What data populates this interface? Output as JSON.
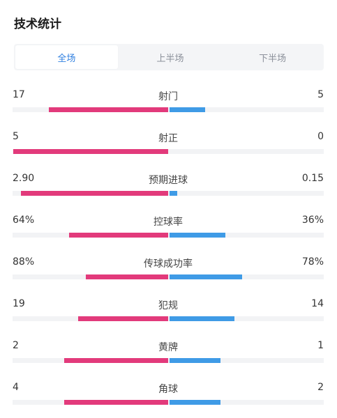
{
  "title": "技术统计",
  "tabs": [
    {
      "label": "全场",
      "active": true
    },
    {
      "label": "上半场",
      "active": false
    },
    {
      "label": "下半场",
      "active": false
    }
  ],
  "colors": {
    "home": "#e23a7b",
    "away": "#3f9be6",
    "active_tab": "#2f7fe0"
  },
  "stats": [
    {
      "label": "射门",
      "home": "17",
      "away": "5",
      "home_frac": 0.77,
      "away_frac": 0.23
    },
    {
      "label": "射正",
      "home": "5",
      "away": "0",
      "home_frac": 1.0,
      "away_frac": 0.0
    },
    {
      "label": "预期进球",
      "home": "2.90",
      "away": "0.15",
      "home_frac": 0.95,
      "away_frac": 0.05
    },
    {
      "label": "控球率",
      "home": "64%",
      "away": "36%",
      "home_frac": 0.64,
      "away_frac": 0.36
    },
    {
      "label": "传球成功率",
      "home": "88%",
      "away": "78%",
      "home_frac": 0.53,
      "away_frac": 0.47
    },
    {
      "label": "犯规",
      "home": "19",
      "away": "14",
      "home_frac": 0.58,
      "away_frac": 0.42
    },
    {
      "label": "黄牌",
      "home": "2",
      "away": "1",
      "home_frac": 0.67,
      "away_frac": 0.33
    },
    {
      "label": "角球",
      "home": "4",
      "away": "2",
      "home_frac": 0.67,
      "away_frac": 0.33
    }
  ]
}
